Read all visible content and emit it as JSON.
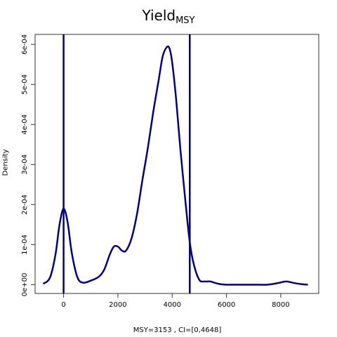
{
  "chart_data": {
    "type": "line",
    "title": "Yield",
    "title_subscript": "MSY",
    "xlabel": "MSY=3153 , CI=[0,4648]",
    "ylabel": "Density",
    "xlim": [
      -1050,
      9400
    ],
    "ylim": [
      -2.2e-05,
      0.000625
    ],
    "x_ticks": [
      0,
      2000,
      4000,
      6000,
      8000
    ],
    "x_tick_labels": [
      "0",
      "2000",
      "4000",
      "6000",
      "8000"
    ],
    "y_ticks": [
      0,
      0.0001,
      0.0002,
      0.0003,
      0.0004,
      0.0005,
      0.0006
    ],
    "y_tick_labels": [
      "0e+00",
      "1e-04",
      "2e-04",
      "3e-04",
      "4e-04",
      "5e-04",
      "6e-04"
    ],
    "grid": false,
    "line_color": "#000080",
    "series": [
      {
        "x": [
          -750,
          -500,
          -300,
          -150,
          0,
          150,
          300,
          500,
          700,
          1000,
          1300,
          1500,
          1700,
          1850,
          2000,
          2150,
          2300,
          2500,
          2700,
          2900,
          3100,
          3300,
          3500,
          3650,
          3800,
          3900,
          4000,
          4150,
          4300,
          4500,
          4650,
          4800,
          5000,
          5200,
          5400,
          5600,
          5800,
          6000,
          6500,
          7000,
          7500,
          7900,
          8200,
          8500,
          8800,
          9000
        ],
        "y": [
          2e-06,
          1.8e-05,
          7.5e-05,
          0.00015,
          0.00019,
          0.000155,
          8e-05,
          2e-05,
          5e-06,
          1e-05,
          2e-05,
          3.8e-05,
          7.5e-05,
          9.5e-05,
          9.5e-05,
          8.5e-05,
          8.5e-05,
          0.000115,
          0.000175,
          0.00026,
          0.00034,
          0.00043,
          0.00051,
          0.00057,
          0.000593,
          0.00059,
          0.000555,
          0.00046,
          0.00034,
          0.0002,
          0.000105,
          5e-05,
          1.2e-05,
          8e-06,
          8e-06,
          4e-06,
          1e-06,
          0.0,
          0.0,
          0.0,
          0.0,
          4e-06,
          8e-06,
          4e-06,
          1e-06,
          0.0
        ]
      }
    ],
    "vlines": [
      0,
      4648
    ]
  }
}
